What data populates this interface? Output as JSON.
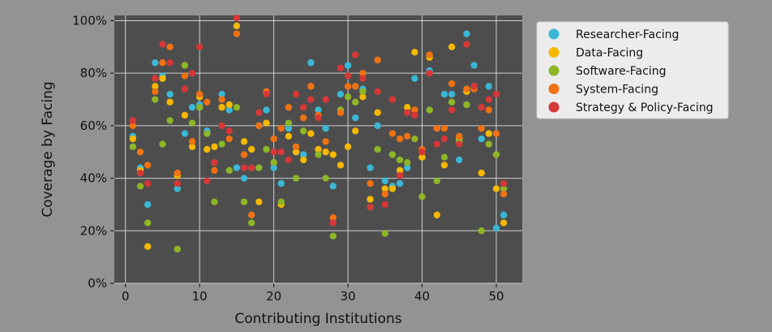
{
  "chart_data": {
    "type": "scatter",
    "title": "",
    "xlabel": "Contributing Institutions",
    "ylabel": "Coverage by Facing",
    "xlim": [
      -1.5,
      53.5
    ],
    "ylim": [
      0,
      102
    ],
    "x_ticks": [
      0,
      10,
      20,
      30,
      40,
      50
    ],
    "y_ticks": [
      0,
      20,
      40,
      60,
      80,
      100
    ],
    "y_tick_labels": [
      "0%",
      "20%",
      "40%",
      "60%",
      "80%",
      "100%"
    ],
    "grid": true,
    "legend_position": "outside-right",
    "series": [
      {
        "name": "Researcher-Facing",
        "color": "#3bb7d6",
        "points": [
          [
            1,
            56
          ],
          [
            2,
            44
          ],
          [
            3,
            30
          ],
          [
            4,
            84
          ],
          [
            5,
            79
          ],
          [
            6,
            72
          ],
          [
            7,
            36
          ],
          [
            8,
            57
          ],
          [
            9,
            67
          ],
          [
            10,
            68
          ],
          [
            11,
            58
          ],
          [
            12,
            46
          ],
          [
            13,
            72
          ],
          [
            14,
            66
          ],
          [
            15,
            44
          ],
          [
            16,
            40
          ],
          [
            17,
            44
          ],
          [
            18,
            60
          ],
          [
            19,
            66
          ],
          [
            20,
            44
          ],
          [
            21,
            38
          ],
          [
            22,
            59
          ],
          [
            23,
            50
          ],
          [
            24,
            49
          ],
          [
            25,
            84
          ],
          [
            26,
            66
          ],
          [
            27,
            59
          ],
          [
            28,
            37
          ],
          [
            29,
            72
          ],
          [
            30,
            83
          ],
          [
            31,
            63
          ],
          [
            32,
            74
          ],
          [
            33,
            44
          ],
          [
            34,
            60
          ],
          [
            35,
            39
          ],
          [
            36,
            37
          ],
          [
            37,
            38
          ],
          [
            38,
            44
          ],
          [
            39,
            78
          ],
          [
            40,
            48
          ],
          [
            41,
            81
          ],
          [
            42,
            59
          ],
          [
            43,
            72
          ],
          [
            44,
            72
          ],
          [
            45,
            47
          ],
          [
            46,
            95
          ],
          [
            47,
            83
          ],
          [
            48,
            55
          ],
          [
            49,
            75
          ],
          [
            50,
            21
          ],
          [
            51,
            26
          ]
        ]
      },
      {
        "name": "Data-Facing",
        "color": "#f5b800",
        "points": [
          [
            1,
            55
          ],
          [
            2,
            43
          ],
          [
            3,
            14
          ],
          [
            4,
            75
          ],
          [
            5,
            78
          ],
          [
            6,
            69
          ],
          [
            7,
            41
          ],
          [
            8,
            64
          ],
          [
            9,
            52
          ],
          [
            10,
            71
          ],
          [
            11,
            51
          ],
          [
            12,
            52
          ],
          [
            13,
            67
          ],
          [
            14,
            68
          ],
          [
            15,
            98
          ],
          [
            16,
            54
          ],
          [
            17,
            51
          ],
          [
            18,
            31
          ],
          [
            19,
            61
          ],
          [
            20,
            46
          ],
          [
            21,
            30
          ],
          [
            22,
            56
          ],
          [
            23,
            50
          ],
          [
            24,
            47
          ],
          [
            25,
            57
          ],
          [
            26,
            51
          ],
          [
            27,
            50
          ],
          [
            28,
            49
          ],
          [
            29,
            45
          ],
          [
            30,
            52
          ],
          [
            31,
            58
          ],
          [
            32,
            71
          ],
          [
            33,
            32
          ],
          [
            34,
            65
          ],
          [
            35,
            36
          ],
          [
            36,
            36
          ],
          [
            37,
            43
          ],
          [
            38,
            67
          ],
          [
            39,
            88
          ],
          [
            40,
            48
          ],
          [
            41,
            86
          ],
          [
            42,
            26
          ],
          [
            43,
            45
          ],
          [
            44,
            90
          ],
          [
            45,
            55
          ],
          [
            46,
            73
          ],
          [
            47,
            74
          ],
          [
            48,
            42
          ],
          [
            49,
            57
          ],
          [
            50,
            36
          ],
          [
            51,
            23
          ]
        ]
      },
      {
        "name": "Software-Facing",
        "color": "#8db628",
        "points": [
          [
            1,
            52
          ],
          [
            2,
            37
          ],
          [
            3,
            23
          ],
          [
            4,
            70
          ],
          [
            5,
            53
          ],
          [
            6,
            62
          ],
          [
            7,
            13
          ],
          [
            8,
            83
          ],
          [
            9,
            61
          ],
          [
            10,
            67
          ],
          [
            11,
            57
          ],
          [
            12,
            31
          ],
          [
            13,
            53
          ],
          [
            14,
            43
          ],
          [
            15,
            67
          ],
          [
            16,
            31
          ],
          [
            17,
            23
          ],
          [
            18,
            44
          ],
          [
            19,
            51
          ],
          [
            20,
            46
          ],
          [
            21,
            31
          ],
          [
            22,
            61
          ],
          [
            23,
            40
          ],
          [
            24,
            58
          ],
          [
            25,
            75
          ],
          [
            26,
            49
          ],
          [
            27,
            40
          ],
          [
            28,
            18
          ],
          [
            29,
            66
          ],
          [
            30,
            71
          ],
          [
            31,
            69
          ],
          [
            32,
            73
          ],
          [
            33,
            29
          ],
          [
            34,
            51
          ],
          [
            35,
            19
          ],
          [
            36,
            49
          ],
          [
            37,
            47
          ],
          [
            38,
            46
          ],
          [
            39,
            55
          ],
          [
            40,
            33
          ],
          [
            41,
            66
          ],
          [
            42,
            39
          ],
          [
            43,
            48
          ],
          [
            44,
            69
          ],
          [
            45,
            54
          ],
          [
            46,
            68
          ],
          [
            47,
            75
          ],
          [
            48,
            20
          ],
          [
            49,
            53
          ],
          [
            50,
            49
          ],
          [
            51,
            36
          ]
        ]
      },
      {
        "name": "System-Facing",
        "color": "#f07213",
        "points": [
          [
            1,
            60
          ],
          [
            2,
            50
          ],
          [
            3,
            45
          ],
          [
            4,
            73
          ],
          [
            5,
            84
          ],
          [
            6,
            90
          ],
          [
            7,
            42
          ],
          [
            8,
            79
          ],
          [
            9,
            54
          ],
          [
            10,
            72
          ],
          [
            11,
            69
          ],
          [
            12,
            43
          ],
          [
            13,
            70
          ],
          [
            14,
            55
          ],
          [
            15,
            95
          ],
          [
            16,
            49
          ],
          [
            17,
            26
          ],
          [
            18,
            60
          ],
          [
            19,
            73
          ],
          [
            20,
            55
          ],
          [
            21,
            59
          ],
          [
            22,
            67
          ],
          [
            23,
            52
          ],
          [
            24,
            63
          ],
          [
            25,
            75
          ],
          [
            26,
            64
          ],
          [
            27,
            54
          ],
          [
            28,
            25
          ],
          [
            29,
            65
          ],
          [
            30,
            75
          ],
          [
            31,
            75
          ],
          [
            32,
            80
          ],
          [
            33,
            38
          ],
          [
            34,
            85
          ],
          [
            35,
            34
          ],
          [
            36,
            57
          ],
          [
            37,
            55
          ],
          [
            38,
            56
          ],
          [
            39,
            66
          ],
          [
            40,
            51
          ],
          [
            41,
            87
          ],
          [
            42,
            59
          ],
          [
            43,
            59
          ],
          [
            44,
            76
          ],
          [
            45,
            56
          ],
          [
            46,
            74
          ],
          [
            47,
            74
          ],
          [
            48,
            59
          ],
          [
            49,
            66
          ],
          [
            50,
            57
          ],
          [
            51,
            34
          ]
        ]
      },
      {
        "name": "Strategy & Policy-Facing",
        "color": "#d63737",
        "points": [
          [
            1,
            62
          ],
          [
            2,
            42
          ],
          [
            3,
            38
          ],
          [
            4,
            78
          ],
          [
            5,
            91
          ],
          [
            6,
            84
          ],
          [
            7,
            38
          ],
          [
            8,
            74
          ],
          [
            9,
            80
          ],
          [
            10,
            90
          ],
          [
            11,
            39
          ],
          [
            12,
            46
          ],
          [
            13,
            60
          ],
          [
            14,
            58
          ],
          [
            15,
            101
          ],
          [
            16,
            44
          ],
          [
            17,
            44
          ],
          [
            18,
            65
          ],
          [
            19,
            72
          ],
          [
            20,
            50
          ],
          [
            21,
            50
          ],
          [
            22,
            47
          ],
          [
            23,
            72
          ],
          [
            24,
            67
          ],
          [
            25,
            70
          ],
          [
            26,
            63
          ],
          [
            27,
            70
          ],
          [
            28,
            23
          ],
          [
            29,
            82
          ],
          [
            30,
            79
          ],
          [
            31,
            87
          ],
          [
            32,
            78
          ],
          [
            33,
            29
          ],
          [
            34,
            73
          ],
          [
            35,
            30
          ],
          [
            36,
            70
          ],
          [
            37,
            41
          ],
          [
            38,
            65
          ],
          [
            39,
            64
          ],
          [
            40,
            50
          ],
          [
            41,
            80
          ],
          [
            42,
            53
          ],
          [
            43,
            55
          ],
          [
            44,
            66
          ],
          [
            45,
            53
          ],
          [
            46,
            91
          ],
          [
            47,
            75
          ],
          [
            48,
            67
          ],
          [
            49,
            70
          ],
          [
            50,
            72
          ],
          [
            51,
            38
          ]
        ]
      }
    ]
  }
}
